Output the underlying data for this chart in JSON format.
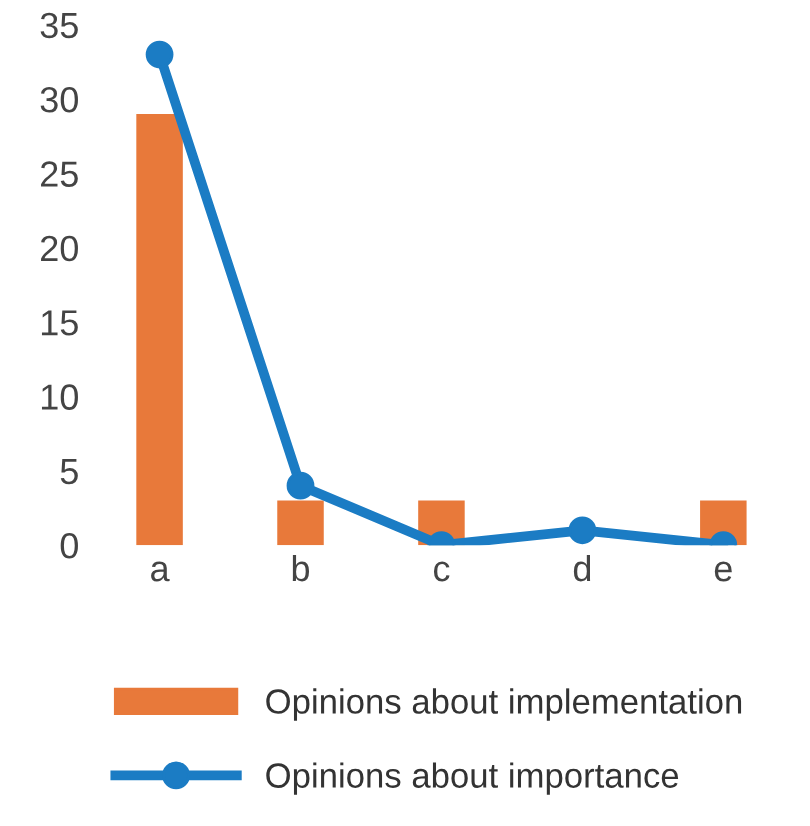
{
  "chart_data": {
    "type": "bar",
    "categories": [
      "a",
      "b",
      "c",
      "d",
      "e"
    ],
    "series": [
      {
        "name": "Opinions about implementation",
        "color": "#e8793a",
        "values": [
          29,
          3,
          3,
          0,
          3
        ]
      },
      {
        "name": "Opinions about importance",
        "type": "line",
        "color": "#1b7cc4",
        "values": [
          33,
          4,
          0,
          1,
          0
        ]
      }
    ],
    "ylim": [
      0,
      35
    ],
    "yticks": [
      0,
      5,
      10,
      15,
      20,
      25,
      30,
      35
    ],
    "grid": false,
    "legend": "bottom",
    "marker": "circle",
    "line_style": "solid"
  }
}
